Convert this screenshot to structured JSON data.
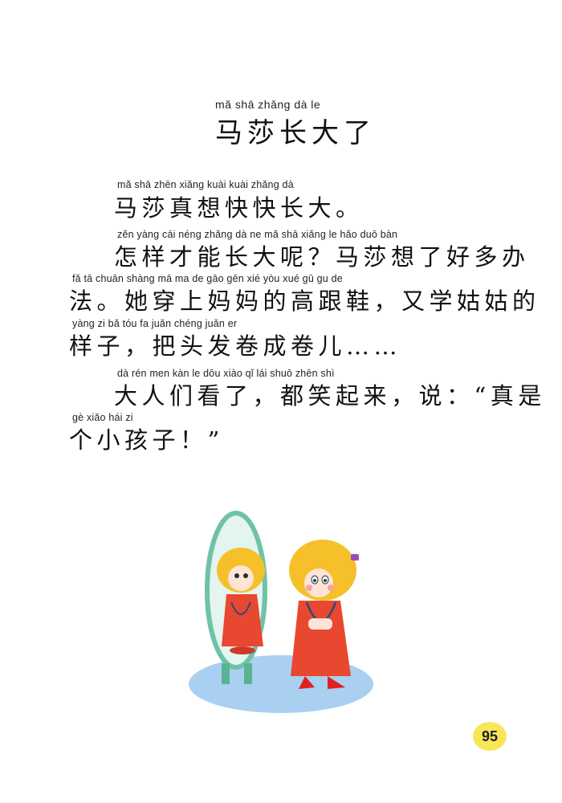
{
  "title": {
    "pinyin": "mǎ shā zhǎng dà  le",
    "hanzi": "马莎长大了"
  },
  "paragraphs": [
    {
      "lines": [
        {
          "pinyin": "mǎ   shā  zhēn xiǎng kuài kuài zhǎng  dà",
          "hanzi": "马莎真想快快长大。"
        }
      ]
    },
    {
      "lines": [
        {
          "pinyin": "zěn yàng cái néng zhǎng  dà    ne        mǎ   shā  xiǎng   le   hǎo  duō  bàn",
          "hanzi": "怎样才能长大呢？马莎想了好多办"
        },
        {
          "pinyin": "fǎ         tā  chuān shàng mā  ma   de  gāo  gēn  xié         yòu  xué  gū    gu    de",
          "hanzi": "法。她穿上妈妈的高跟鞋，又学姑姑的"
        },
        {
          "pinyin": "yàng  zi        bǎ   tóu   fa   juǎn chéng juǎn  er",
          "hanzi": "样子，把头发卷成卷儿……"
        }
      ]
    },
    {
      "lines": [
        {
          "pinyin": "dà   rén  men  kàn   le            dōu  xiào   qǐ   lái          shuō              zhēn  shì",
          "hanzi": "大人们看了，都笑起来，说：“真是"
        },
        {
          "pinyin": "gè  xiǎo  hái    zi",
          "hanzi": "个小孩子！”"
        }
      ]
    }
  ],
  "page_number": "95",
  "colors": {
    "mirror_frame": "#6fc2a6",
    "hair": "#f5c02a",
    "dress": "#e8482f",
    "floor": "#a9d0f0",
    "page_badge": "#f7e65a"
  }
}
